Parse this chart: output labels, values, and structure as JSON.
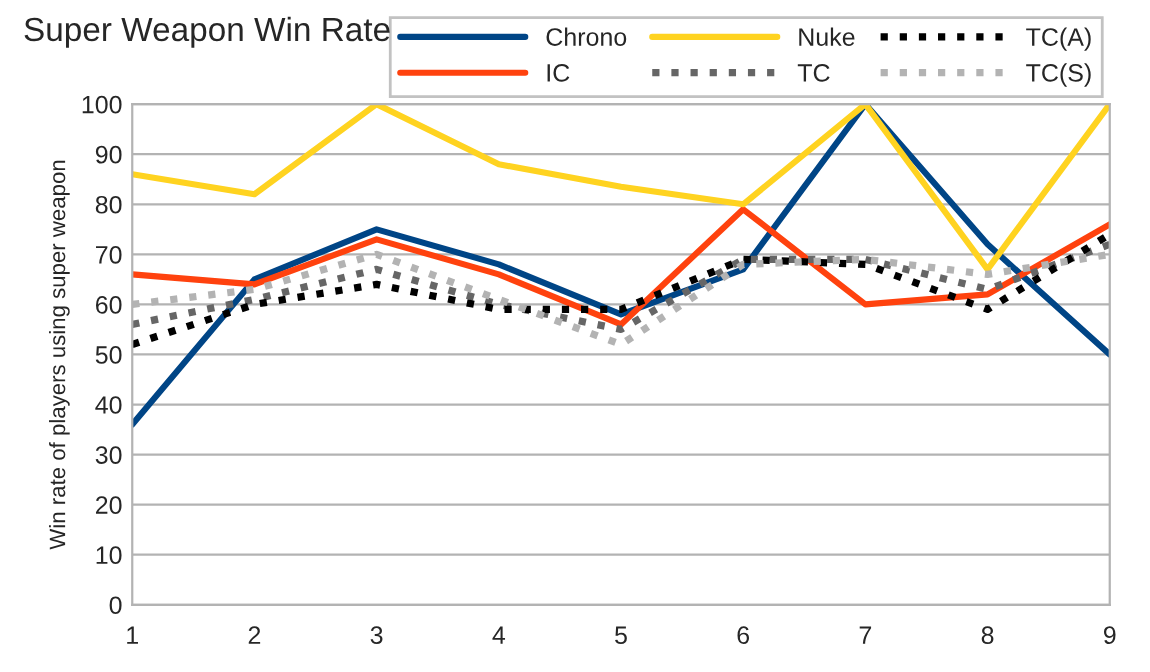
{
  "chart_data": {
    "type": "line",
    "title": "Super Weapon Win Rate",
    "ylabel": "Win rate of players using super weapon",
    "x": [
      1,
      2,
      3,
      4,
      5,
      6,
      7,
      8,
      9
    ],
    "series": [
      {
        "name": "Chrono",
        "color": "#004586",
        "line_style": "solid",
        "values": [
          36,
          65,
          75,
          68,
          58,
          67,
          100,
          72,
          50
        ]
      },
      {
        "name": "IC",
        "color": "#ff420e",
        "line_style": "solid",
        "values": [
          66,
          64,
          73,
          66,
          56,
          79,
          60,
          62,
          76
        ]
      },
      {
        "name": "Nuke",
        "color": "#ffd320",
        "line_style": "solid",
        "values": [
          86,
          82,
          100,
          88,
          83.5,
          80,
          100,
          67,
          100
        ]
      },
      {
        "name": "TC",
        "color": "#666666",
        "line_style": "dotted",
        "values": [
          56,
          61,
          67,
          60,
          55,
          69,
          69,
          63,
          72
        ]
      },
      {
        "name": "TC(A)",
        "color": "#000000",
        "line_style": "dotted",
        "values": [
          52,
          60,
          64,
          59,
          59,
          69,
          68,
          59,
          74
        ]
      },
      {
        "name": "TC(S)",
        "color": "#b3b3b3",
        "line_style": "dotted",
        "values": [
          60,
          63,
          70,
          61,
          52,
          68,
          69,
          66,
          70
        ]
      }
    ],
    "xlim": [
      1,
      9
    ],
    "xticks": [
      1,
      2,
      3,
      4,
      5,
      6,
      7,
      8,
      9
    ],
    "ylim": [
      0,
      100
    ],
    "yticks": [
      0,
      10,
      20,
      30,
      40,
      50,
      60,
      70,
      80,
      90,
      100
    ],
    "grid": "y",
    "legend": "top right",
    "marker": "none"
  }
}
